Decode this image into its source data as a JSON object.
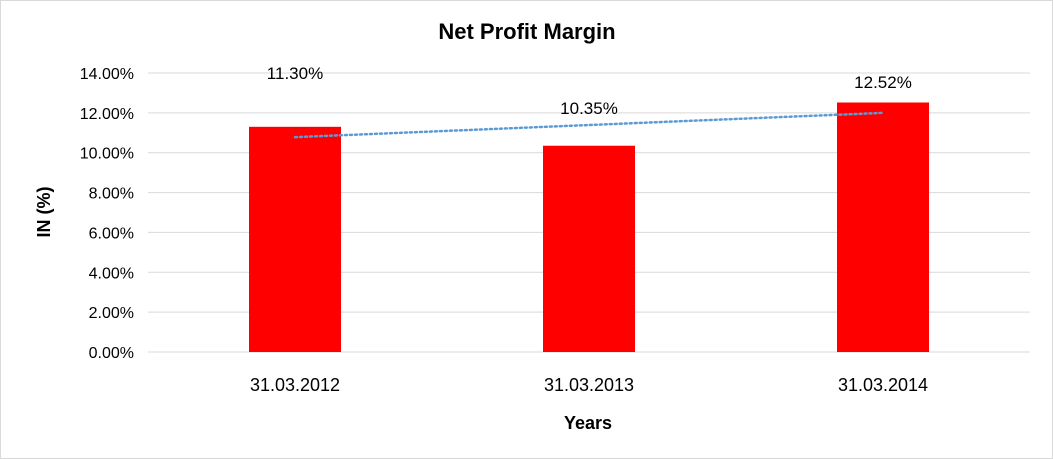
{
  "chart_data": {
    "type": "bar",
    "title": "Net Profit Margin",
    "xlabel": "Years",
    "ylabel": "IN (%)",
    "categories": [
      "31.03.2012",
      "31.03.2013",
      "31.03.2014"
    ],
    "values": [
      11.3,
      10.35,
      12.52
    ],
    "data_labels": [
      "11.30%",
      "10.35%",
      "12.52%"
    ],
    "ylim": [
      0,
      14
    ],
    "y_ticks": [
      0,
      2,
      4,
      6,
      8,
      10,
      12,
      14
    ],
    "y_tick_labels": [
      "0.00%",
      "2.00%",
      "4.00%",
      "6.00%",
      "8.00%",
      "10.00%",
      "12.00%",
      "14.00%"
    ],
    "grid": true,
    "legend": "none",
    "trendline": {
      "type": "linear",
      "style": "dotted"
    },
    "colors": {
      "bar": "#ff0000",
      "trendline": "#5b9bd5",
      "grid": "#d9d9d9"
    }
  }
}
